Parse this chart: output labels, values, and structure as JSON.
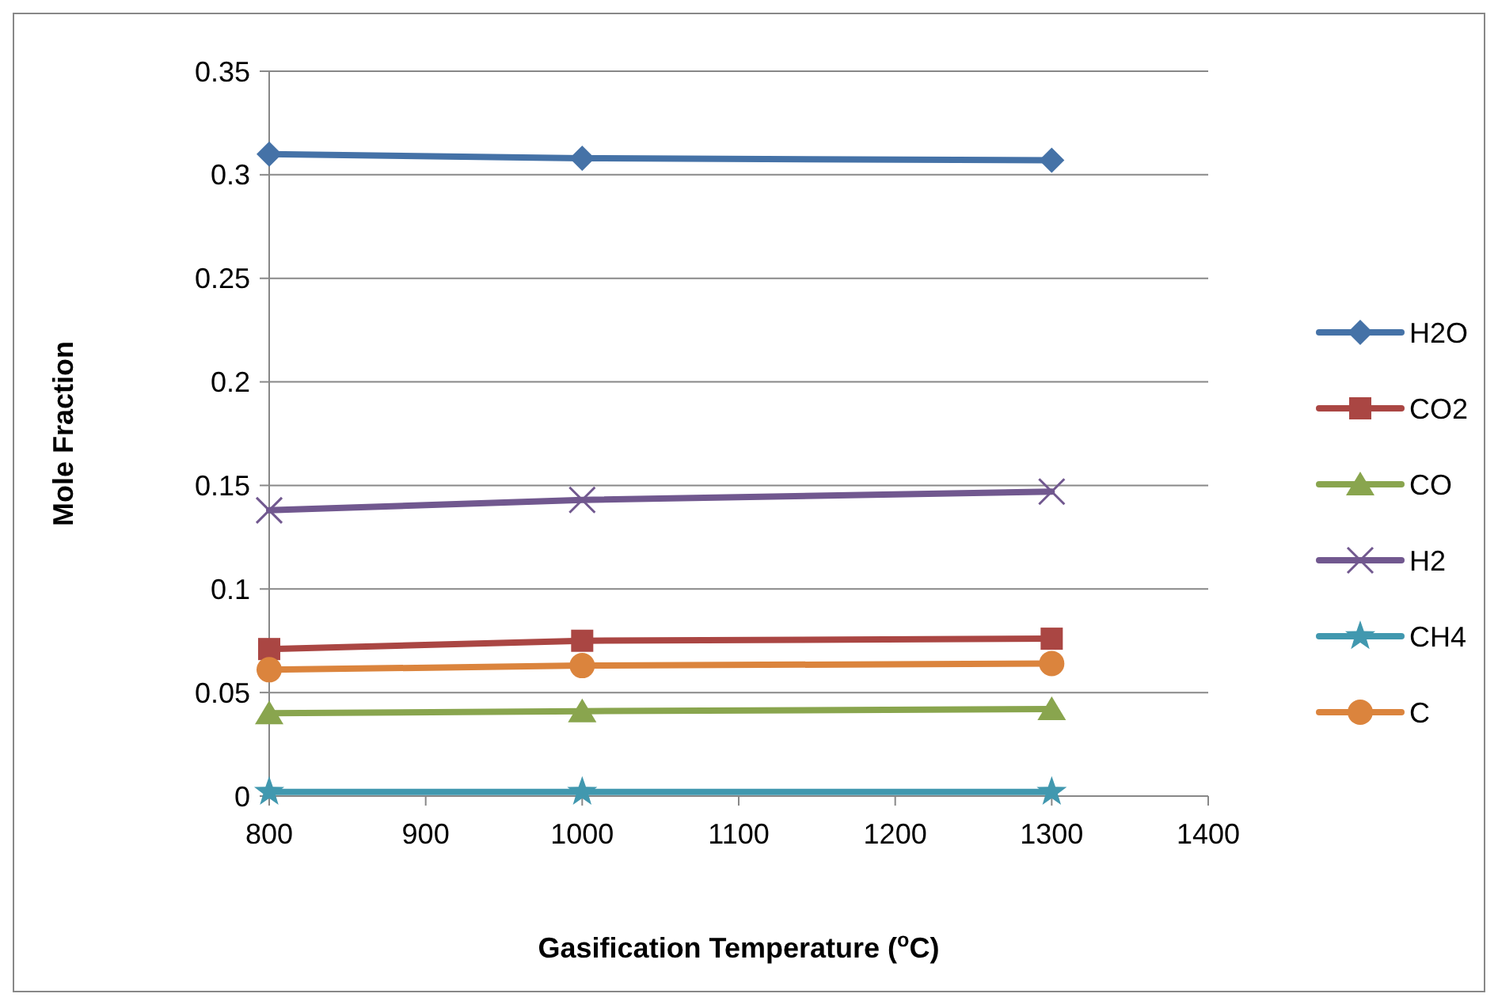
{
  "chart_data": {
    "type": "line",
    "xlabel": "Gasification Temperature ($^{o}$C)",
    "ylabel": "Mole Fraction",
    "x": [
      800,
      1000,
      1300
    ],
    "xlim": [
      800,
      1400
    ],
    "xticks": [
      800,
      900,
      1000,
      1100,
      1200,
      1300,
      1400
    ],
    "ylim": [
      0,
      0.35
    ],
    "yticks": [
      0,
      0.05,
      0.1,
      0.15,
      0.2,
      0.25,
      0.3,
      0.35
    ],
    "grid": "y",
    "legend": "right",
    "series": [
      {
        "name": "H2O",
        "color": "#4572a7",
        "marker": "diamond",
        "values": [
          0.31,
          0.308,
          0.307
        ]
      },
      {
        "name": "CO2",
        "color": "#aa4643",
        "marker": "square",
        "values": [
          0.071,
          0.075,
          0.076
        ]
      },
      {
        "name": "CO",
        "color": "#89a54e",
        "marker": "triangle",
        "values": [
          0.04,
          0.041,
          0.042
        ]
      },
      {
        "name": "H2",
        "color": "#71588f",
        "marker": "cross",
        "values": [
          0.138,
          0.143,
          0.147
        ]
      },
      {
        "name": "CH4",
        "color": "#4198af",
        "marker": "star",
        "values": [
          0.002,
          0.002,
          0.002
        ]
      },
      {
        "name": "C",
        "color": "#db843d",
        "marker": "circle",
        "values": [
          0.061,
          0.063,
          0.064
        ]
      }
    ]
  }
}
